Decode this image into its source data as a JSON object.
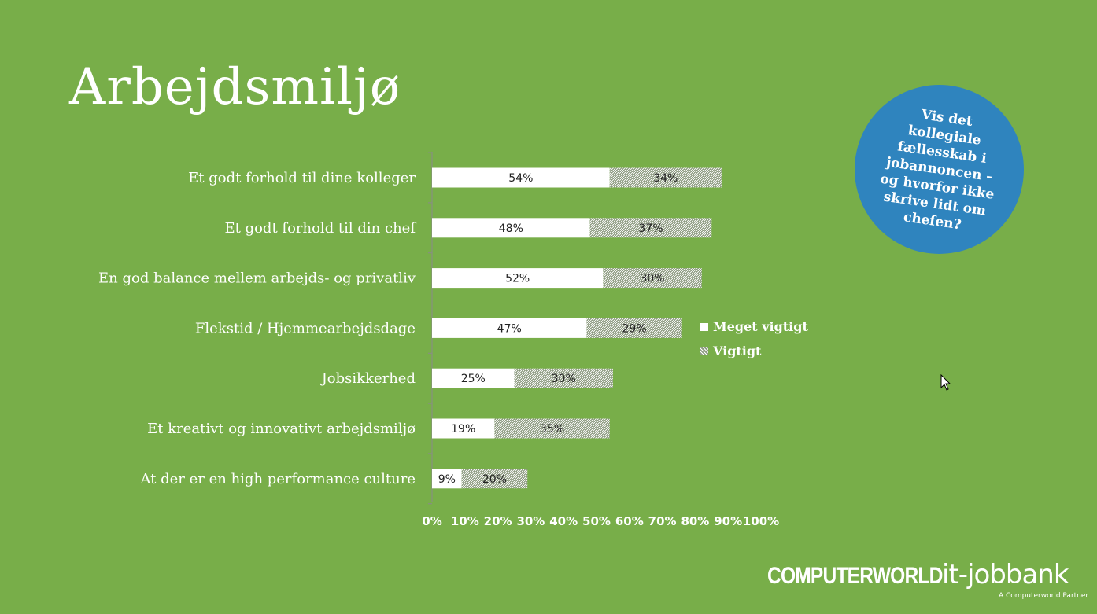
{
  "title": "Arbejdsmiljø",
  "bubble_text": "Vis det kollegiale fællesskab i jobannoncen – og hvorfor ikke skrive lidt om chefen?",
  "colors": {
    "background": "#78ae49",
    "bar_primary": "#ffffff",
    "bar_secondary_hatch": "#8e9c82",
    "bubble": "#2f84be"
  },
  "chart_data": {
    "type": "bar",
    "orientation": "horizontal",
    "stacked": true,
    "categories": [
      "Et godt forhold til dine kolleger",
      "Et godt forhold til din chef",
      "En god balance mellem arbejds- og privatliv",
      "Flekstid / Hjemmearbejdsdage",
      "Jobsikkerhed",
      "Et kreativt og innovativt arbejdsmiljø",
      "At der er en high performance culture"
    ],
    "series": [
      {
        "name": "Meget vigtigt",
        "values": [
          54,
          48,
          52,
          47,
          25,
          19,
          9
        ]
      },
      {
        "name": "Vigtigt",
        "values": [
          34,
          37,
          30,
          29,
          30,
          35,
          20
        ]
      }
    ],
    "value_labels": [
      [
        "54%",
        "48%",
        "52%",
        "47%",
        "25%",
        "19%",
        "9%"
      ],
      [
        "34%",
        "37%",
        "30%",
        "29%",
        "30%",
        "35%",
        "20%"
      ]
    ],
    "xlim": [
      0,
      100
    ],
    "xticks": [
      "0%",
      "10%",
      "20%",
      "30%",
      "40%",
      "50%",
      "60%",
      "70%",
      "80%",
      "90%",
      "100%"
    ],
    "legend_position": "right",
    "grid": false
  },
  "logos": {
    "computerworld": "COMPUTERWORLD",
    "itjobbank": "it-jobbank",
    "itjobbank_sub": "A Computerworld Partner"
  }
}
